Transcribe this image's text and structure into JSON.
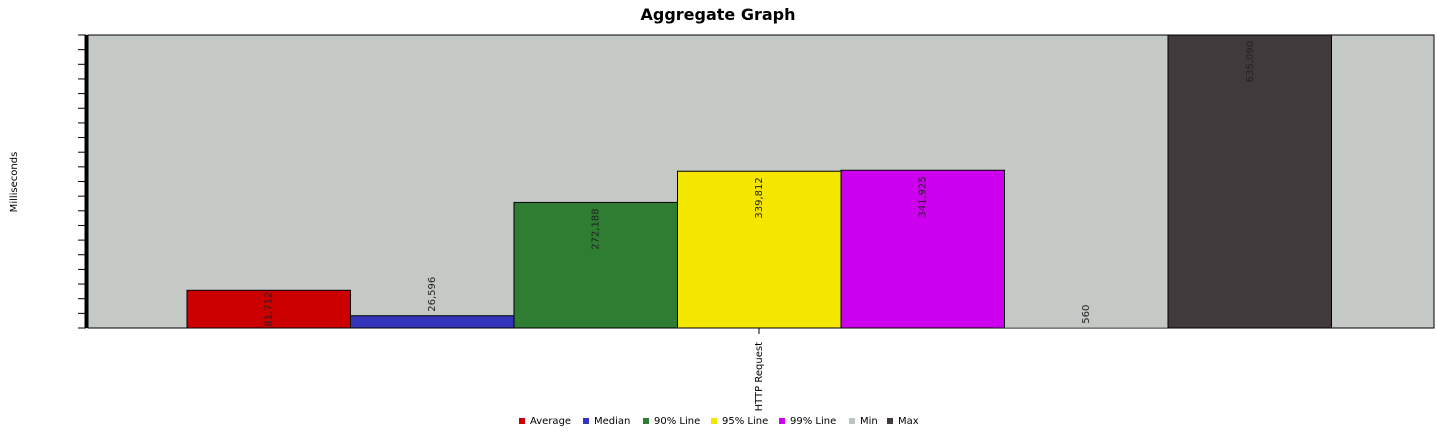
{
  "chart_data": {
    "type": "bar",
    "title": "Aggregate Graph",
    "ylabel": "Milliseconds",
    "categories": [
      "HTTP Request"
    ],
    "ylim": [
      0,
      635090
    ],
    "grid": false,
    "legend_position": "bottom",
    "series": [
      {
        "name": "Average",
        "values": [
          81712
        ],
        "label": "81,712",
        "color": "#cc0000"
      },
      {
        "name": "Median",
        "values": [
          26596
        ],
        "label": "26,596",
        "color": "#3333bb"
      },
      {
        "name": "90% Line",
        "values": [
          272188
        ],
        "label": "272,188",
        "color": "#2e7d32"
      },
      {
        "name": "95% Line",
        "values": [
          339812
        ],
        "label": "339,812",
        "color": "#f5e600"
      },
      {
        "name": "99% Line",
        "values": [
          341925
        ],
        "label": "341,925",
        "color": "#cc00ee"
      },
      {
        "name": "Min",
        "values": [
          560
        ],
        "label": "560",
        "color": "#bcc4c0"
      },
      {
        "name": "Max",
        "values": [
          635090
        ],
        "label": "635,090",
        "color": "#403a3c"
      }
    ],
    "plot_background": "#c4c9c6"
  }
}
